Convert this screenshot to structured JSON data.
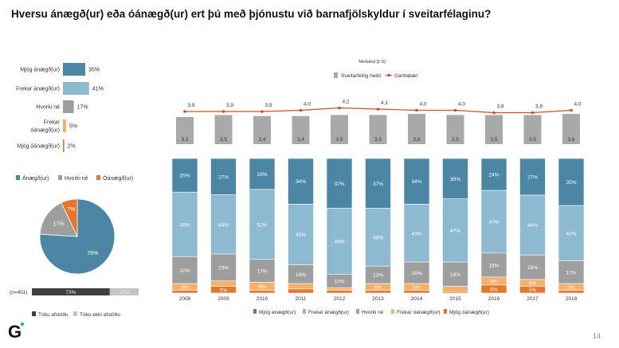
{
  "title": "Hversu ánægð(ur) eða óánægð(ur) ert þú með þjónustu við barnafjölskyldur í sveitarfélaginu?",
  "page_number": "14",
  "logo": "G",
  "colors": {
    "mjog_anaegd": "#4c86a5",
    "frekar_anaegd": "#8dbad1",
    "hvorki": "#9e9e9e",
    "frekar_oanaegd": "#f2b06c",
    "mjog_oanaegd": "#e5762c",
    "line": "#c9502a",
    "mean_bar": "#a9a9a9",
    "took_position": "#404040",
    "no_position": "#c4c4c4"
  },
  "chart_data": [
    {
      "type": "bar",
      "orientation": "horizontal",
      "categories": [
        "Mjög ánægð(ur)",
        "Frekar ánægð(ur)",
        "Hvorki né",
        "Frekar óánægð(ur)",
        "Mjög óánægð(ur)"
      ],
      "values": [
        35,
        41,
        17,
        5,
        2
      ],
      "labels": [
        "35%",
        "41%",
        "17%",
        "5%",
        "2%"
      ]
    },
    {
      "type": "pie",
      "legend": [
        "Ánægð(ur)",
        "Hvorki né",
        "Óánægð(ur)"
      ],
      "values": [
        76,
        17,
        7
      ],
      "labels": [
        "76%",
        "17%",
        "7%"
      ],
      "legend_placement": "top"
    },
    {
      "type": "bar",
      "stacked": true,
      "orientation": "horizontal",
      "note": "(n=451)",
      "series": [
        {
          "name": "Tóku afstöðu",
          "values": [
            73
          ],
          "label": "73%"
        },
        {
          "name": "Tóku ekki afstöðu",
          "values": [
            27
          ],
          "label": "27%"
        }
      ],
      "legend_placement": "bottom"
    },
    {
      "type": "bar+line",
      "title": "Meðaltal [1-5]",
      "categories": [
        "2008",
        "2009",
        "2010",
        "2011",
        "2012",
        "2013",
        "2014",
        "2015",
        "2016",
        "2017",
        "2018"
      ],
      "series": [
        {
          "name": "Sveitarfélög heild",
          "type": "bar",
          "values": [
            3.3,
            3.5,
            3.4,
            3.4,
            3.5,
            3.5,
            3.6,
            3.5,
            3.5,
            3.5,
            3.6
          ],
          "labels": [
            "3,3",
            "3,5",
            "3,4",
            "3,4",
            "3,5",
            "3,5",
            "3,6",
            "3,5",
            "3,5",
            "3,5",
            "3,6"
          ]
        },
        {
          "name": "Garðabær",
          "type": "line",
          "values": [
            3.9,
            3.9,
            3.9,
            4.0,
            4.2,
            4.1,
            4.0,
            4.0,
            3.8,
            3.8,
            4.0
          ],
          "labels": [
            "3,9",
            "3,9",
            "3,9",
            "4,0",
            "4,2",
            "4,1",
            "4,0",
            "4,0",
            "3,8",
            "3,8",
            "4,0"
          ]
        }
      ],
      "legend_placement": "top"
    },
    {
      "type": "bar",
      "stacked": true,
      "categories": [
        "2008",
        "2009",
        "2010",
        "2011",
        "2012",
        "2013",
        "2014",
        "2015",
        "2016",
        "2017",
        "2018"
      ],
      "series": [
        {
          "name": "Mjög ánægð(ur)",
          "values": [
            25,
            27,
            23,
            34,
            37,
            37,
            34,
            30,
            24,
            27,
            35
          ]
        },
        {
          "name": "Frekar ánægð(ur)",
          "values": [
            48,
            44,
            52,
            45,
            49,
            43,
            43,
            47,
            47,
            44,
            41
          ]
        },
        {
          "name": "Hvorki né",
          "values": [
            20,
            20,
            17,
            14,
            10,
            13,
            16,
            18,
            18,
            18,
            17
          ]
        },
        {
          "name": "Frekar óánægð(ur)",
          "values": [
            5,
            4,
            6,
            4,
            2,
            5,
            5,
            4,
            6,
            5,
            5
          ]
        },
        {
          "name": "Mjög óánægð(ur)",
          "values": [
            2,
            5,
            2,
            3,
            2,
            2,
            2,
            1,
            6,
            5,
            2
          ]
        }
      ],
      "legend_placement": "bottom"
    }
  ]
}
